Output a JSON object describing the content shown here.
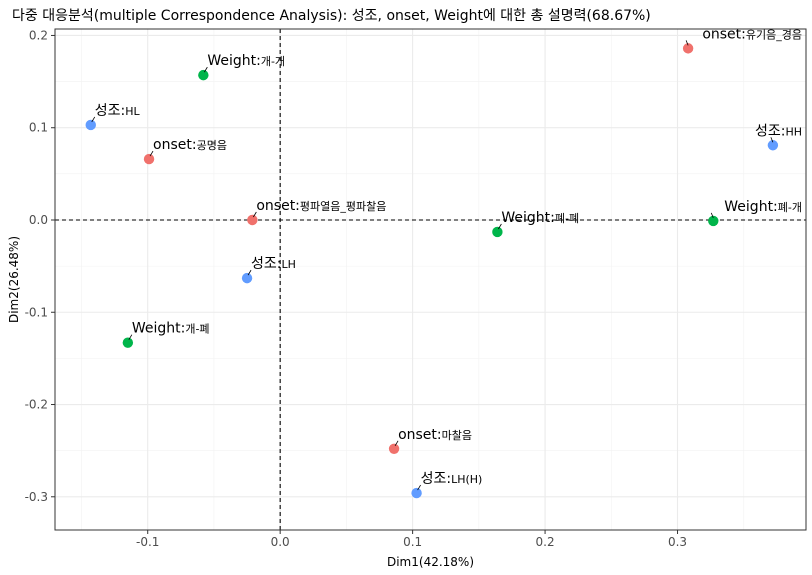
{
  "chart_data": {
    "type": "scatter",
    "title": "다중 대응분석(multiple Correspondence Analysis): 성조, onset, Weight에 대한 총 설명력(68.67%)",
    "xlabel": "Dim1(42.18%)",
    "ylabel": "Dim2(26.48%)",
    "xlim": [
      -0.17,
      0.397
    ],
    "ylim": [
      -0.336,
      0.207
    ],
    "xticks": [
      -0.1,
      0.0,
      0.1,
      0.2,
      0.3
    ],
    "yticks": [
      -0.3,
      -0.2,
      -0.1,
      0.0,
      0.1,
      0.2
    ],
    "xtick_labels": [
      "-0.1",
      "0.0",
      "0.1",
      "0.2",
      "0.3"
    ],
    "ytick_labels": [
      "-0.3",
      "-0.2",
      "-0.1",
      "0.0",
      "0.1",
      "0.2"
    ],
    "grid": true,
    "reference_lines": {
      "x": 0,
      "y": 0,
      "style": "dashed"
    },
    "colors": {
      "onset": "#f0716c",
      "Weight": "#00b54a",
      "성조": "#619cff"
    },
    "points": [
      {
        "group": "onset",
        "prefix": "onset:",
        "label": "유기음_경음",
        "x": 0.308,
        "y": 0.186
      },
      {
        "group": "Weight",
        "prefix": "Weight:",
        "label": "개-개",
        "x": -0.058,
        "y": 0.157
      },
      {
        "group": "성조",
        "prefix": "성조:",
        "label": "HL",
        "x": -0.143,
        "y": 0.103
      },
      {
        "group": "onset",
        "prefix": "onset:",
        "label": "공명음",
        "x": -0.099,
        "y": 0.066
      },
      {
        "group": "성조",
        "prefix": "성조:",
        "label": "HH",
        "x": 0.372,
        "y": 0.081
      },
      {
        "group": "onset",
        "prefix": "onset:",
        "label": "평파열음_평파찰음",
        "x": -0.021,
        "y": 0.0
      },
      {
        "group": "Weight",
        "prefix": "Weight:",
        "label": "폐-폐",
        "x": 0.164,
        "y": -0.013
      },
      {
        "group": "Weight",
        "prefix": "Weight:",
        "label": "폐-개",
        "x": 0.327,
        "y": -0.001
      },
      {
        "group": "성조",
        "prefix": "성조:",
        "label": "LH",
        "x": -0.025,
        "y": -0.063
      },
      {
        "group": "Weight",
        "prefix": "Weight:",
        "label": "개-폐",
        "x": -0.115,
        "y": -0.133
      },
      {
        "group": "onset",
        "prefix": "onset:",
        "label": "마찰음",
        "x": 0.086,
        "y": -0.248
      },
      {
        "group": "성조",
        "prefix": "성조:",
        "label": "LH(H)",
        "x": 0.103,
        "y": -0.296
      }
    ]
  }
}
